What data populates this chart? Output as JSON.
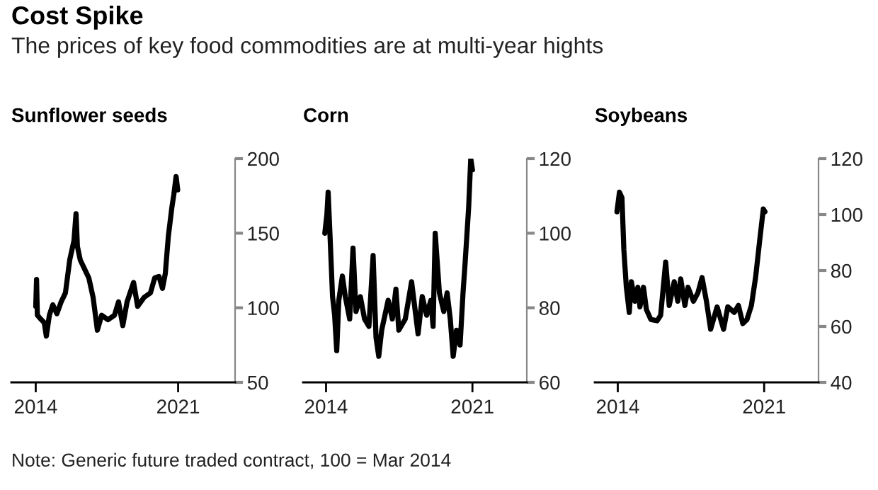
{
  "chart_data": [
    {
      "type": "line",
      "title": "Sunflower seeds",
      "xlim": [
        2012.8,
        2023.8
      ],
      "xticks": [
        2014,
        2021
      ],
      "ylim": [
        50,
        200
      ],
      "yticks": [
        50,
        100,
        150,
        200
      ],
      "grid": false,
      "legend": false,
      "series": [
        {
          "color": "#000000",
          "x": [
            2014.0,
            2014.04,
            2014.08,
            2014.21,
            2014.42,
            2014.52,
            2014.67,
            2014.84,
            2015.04,
            2015.25,
            2015.46,
            2015.67,
            2015.88,
            2015.98,
            2016.05,
            2016.19,
            2016.4,
            2016.61,
            2016.82,
            2017.03,
            2017.24,
            2017.55,
            2017.87,
            2018.07,
            2018.28,
            2018.49,
            2018.81,
            2019.01,
            2019.33,
            2019.64,
            2019.85,
            2020.06,
            2020.23,
            2020.37,
            2020.52,
            2020.69,
            2020.79,
            2020.9,
            2020.98
          ],
          "values": [
            101,
            119,
            95,
            93,
            90,
            81,
            95,
            102,
            96,
            104,
            110,
            132,
            145,
            163,
            141,
            132,
            126,
            120,
            107,
            85,
            95,
            92,
            95,
            104,
            88,
            104,
            117,
            101,
            107,
            110,
            120,
            121,
            113,
            123,
            148,
            167,
            176,
            188,
            179
          ]
        }
      ]
    },
    {
      "type": "line",
      "title": "Corn",
      "xlim": [
        2012.9,
        2023.6
      ],
      "xticks": [
        2014,
        2021
      ],
      "ylim": [
        60,
        120
      ],
      "yticks": [
        60,
        80,
        100,
        120
      ],
      "grid": false,
      "legend": false,
      "series": [
        {
          "color": "#000000",
          "x": [
            2013.94,
            2014.04,
            2014.1,
            2014.2,
            2014.31,
            2014.41,
            2014.51,
            2014.61,
            2014.78,
            2014.92,
            2015.13,
            2015.29,
            2015.43,
            2015.64,
            2015.84,
            2016.05,
            2016.25,
            2016.39,
            2016.52,
            2016.66,
            2016.97,
            2017.17,
            2017.34,
            2017.48,
            2017.79,
            2018.09,
            2018.4,
            2018.6,
            2018.81,
            2019.01,
            2019.12,
            2019.22,
            2019.42,
            2019.63,
            2019.79,
            2019.94,
            2020.08,
            2020.24,
            2020.41,
            2020.55,
            2020.65,
            2020.82,
            2020.92,
            2021.0
          ],
          "values": [
            100,
            105,
            111,
            98,
            83,
            78,
            68.5,
            82,
            88.5,
            83,
            77,
            96,
            79,
            83,
            77,
            75,
            94,
            72,
            67,
            74,
            82,
            77,
            85,
            74,
            77,
            87,
            73,
            83,
            78,
            82,
            75,
            100,
            84,
            79,
            84,
            77,
            67,
            74,
            70,
            84,
            92,
            107,
            120,
            117
          ]
        }
      ]
    },
    {
      "type": "line",
      "title": "Soybeans",
      "xlim": [
        2012.9,
        2023.6
      ],
      "xticks": [
        2014,
        2021
      ],
      "ylim": [
        40,
        120
      ],
      "yticks": [
        40,
        60,
        80,
        100,
        120
      ],
      "grid": false,
      "legend": false,
      "series": [
        {
          "color": "#000000",
          "x": [
            2013.96,
            2014.08,
            2014.2,
            2014.29,
            2014.41,
            2014.55,
            2014.65,
            2014.82,
            2014.96,
            2015.06,
            2015.23,
            2015.37,
            2015.58,
            2015.88,
            2016.05,
            2016.29,
            2016.46,
            2016.7,
            2016.87,
            2017.01,
            2017.21,
            2017.36,
            2017.62,
            2017.83,
            2018.03,
            2018.24,
            2018.44,
            2018.75,
            2019.06,
            2019.26,
            2019.57,
            2019.77,
            2019.98,
            2020.18,
            2020.39,
            2020.59,
            2020.79,
            2020.96,
            2021.04
          ],
          "values": [
            101,
            108,
            106,
            87.5,
            74,
            65,
            76,
            69,
            74,
            67,
            74,
            66,
            62.5,
            62,
            64,
            83,
            67.5,
            76,
            69,
            77,
            67.5,
            74,
            69,
            72,
            77.5,
            69,
            59,
            67,
            59,
            67,
            65,
            67.5,
            61,
            62.5,
            67.5,
            77.5,
            91,
            102,
            101
          ]
        }
      ]
    },
    {
      "type": "other",
      "title": "Cost Spike",
      "subtitle": "The prices of key food commodities are at multi-year hights",
      "annotations": [
        "Note: Generic future traded contract, 100 = Mar 2014"
      ]
    }
  ]
}
